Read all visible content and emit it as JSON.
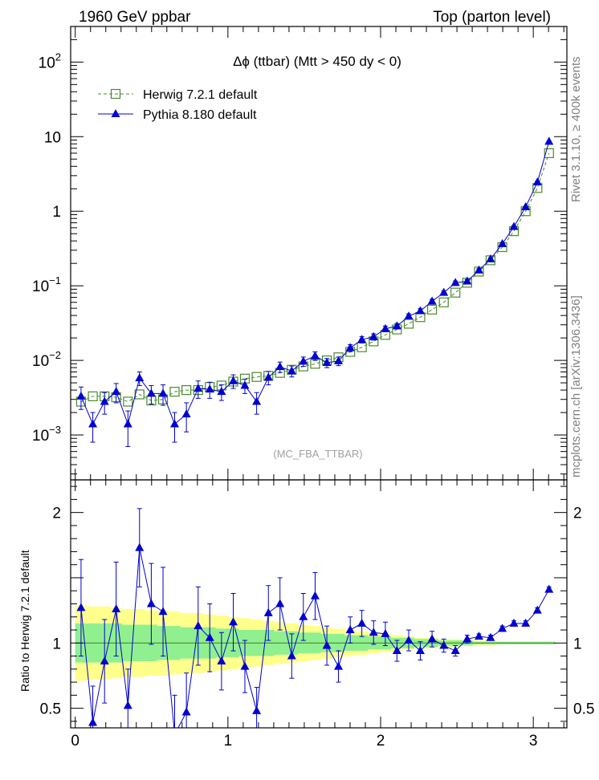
{
  "header": {
    "left": "1960 GeV ppbar",
    "right": "Top (parton level)"
  },
  "side_labels": {
    "rivet": "Rivet 3.1.10, ≥ 400k events",
    "mcplots": "mcplots.cern.ch [arXiv:1306.3436]"
  },
  "chart_data": {
    "type": "line",
    "title": "Δϕ (ttbar) (Mtt > 450 dy < 0)",
    "watermark": "(MC_FBA_TTBAR)",
    "xlabel": "",
    "ylabel": "",
    "xlim": [
      -0.03,
      3.22
    ],
    "main_panel": {
      "yscale": "log",
      "ylim": [
        0.00025,
        300
      ],
      "yticks": [
        {
          "v": 0.001,
          "base": "10",
          "exp": "−3"
        },
        {
          "v": 0.01,
          "base": "10",
          "exp": "−2"
        },
        {
          "v": 0.1,
          "base": "10",
          "exp": "−1"
        },
        {
          "v": 1,
          "base": "1",
          "exp": ""
        },
        {
          "v": 10,
          "base": "10",
          "exp": ""
        },
        {
          "v": 100,
          "base": "10",
          "exp": "2"
        }
      ]
    },
    "ratio_panel": {
      "ylabel": "Ratio to Herwig 7.2.1 default",
      "ylim": [
        0.35,
        2.25
      ],
      "yticks": [
        {
          "v": 0.5,
          "label": "0.5"
        },
        {
          "v": 1,
          "label": "1"
        },
        {
          "v": 2,
          "label": "2"
        }
      ],
      "band_inner": [
        0.15,
        0.15,
        0.15,
        0.15,
        0.14,
        0.14,
        0.14,
        0.13,
        0.13,
        0.12,
        0.12,
        0.12,
        0.11,
        0.11,
        0.1,
        0.1,
        0.1,
        0.09,
        0.09,
        0.08,
        0.08,
        0.07,
        0.07,
        0.06,
        0.06,
        0.05,
        0.05,
        0.04,
        0.04,
        0.03,
        0.03,
        0.02,
        0.02,
        0.02,
        0.01,
        0.01,
        0.01,
        0.01,
        0.01,
        0.01,
        0.01
      ],
      "band_outer": [
        0.29,
        0.28,
        0.28,
        0.27,
        0.26,
        0.26,
        0.25,
        0.25,
        0.24,
        0.23,
        0.23,
        0.22,
        0.21,
        0.2,
        0.19,
        0.18,
        0.17,
        0.16,
        0.15,
        0.14,
        0.13,
        0.12,
        0.11,
        0.1,
        0.09,
        0.08,
        0.07,
        0.06,
        0.05,
        0.04,
        0.04,
        0.03,
        0.03,
        0.02,
        0.02,
        0.02,
        0.01,
        0.01,
        0.01,
        0.01,
        0.01
      ]
    },
    "x": [
      0.038,
      0.115,
      0.192,
      0.268,
      0.345,
      0.421,
      0.498,
      0.575,
      0.651,
      0.728,
      0.805,
      0.881,
      0.958,
      1.035,
      1.111,
      1.188,
      1.265,
      1.341,
      1.418,
      1.494,
      1.571,
      1.648,
      1.724,
      1.801,
      1.877,
      1.954,
      2.031,
      2.107,
      2.184,
      2.26,
      2.337,
      2.414,
      2.49,
      2.567,
      2.644,
      2.72,
      2.797,
      2.873,
      2.95,
      3.027,
      3.103
    ],
    "series": [
      {
        "name": "Herwig 7.2.1 default",
        "color": "#4a8a2a",
        "marker": "open-square",
        "linestyle": "dashed",
        "values": [
          0.0028,
          0.0033,
          0.0033,
          0.0032,
          0.0028,
          0.0035,
          0.0029,
          0.003,
          0.0038,
          0.004,
          0.004,
          0.0044,
          0.0046,
          0.0052,
          0.0057,
          0.006,
          0.0062,
          0.0068,
          0.0075,
          0.0083,
          0.009,
          0.01,
          0.011,
          0.013,
          0.015,
          0.018,
          0.022,
          0.026,
          0.031,
          0.038,
          0.048,
          0.06,
          0.081,
          0.11,
          0.155,
          0.22,
          0.33,
          0.54,
          1.0,
          2.05,
          6.0
        ]
      },
      {
        "name": "Pythia 8.180 default",
        "color": "#0000d0",
        "marker": "filled-triangle",
        "linestyle": "solid",
        "values": [
          0.0033,
          0.0014,
          0.0028,
          0.0038,
          0.0014,
          0.0058,
          0.0036,
          0.0036,
          0.0014,
          0.0019,
          0.0042,
          0.0041,
          0.0038,
          0.0053,
          0.0046,
          0.0028,
          0.0059,
          0.0082,
          0.0072,
          0.0097,
          0.0115,
          0.0093,
          0.0098,
          0.0147,
          0.019,
          0.0207,
          0.0265,
          0.0288,
          0.039,
          0.046,
          0.062,
          0.081,
          0.11,
          0.115,
          0.162,
          0.228,
          0.365,
          0.62,
          1.14,
          2.45,
          8.6
        ],
        "err": [
          0.0011,
          0.0006,
          0.0009,
          0.0011,
          0.0007,
          0.0012,
          0.001,
          0.0011,
          0.0006,
          0.0008,
          0.0011,
          0.001,
          0.0009,
          0.0011,
          0.001,
          0.0009,
          0.0012,
          0.0013,
          0.0012,
          0.0014,
          0.0015,
          0.0013,
          0.0013,
          0.0016,
          0.0019,
          0.002,
          0.0023,
          0.0024,
          0.003,
          0.0033,
          0.004,
          0.0048,
          0.006,
          0.0061,
          0.0075,
          0.009,
          0.012,
          0.018,
          0.028,
          0.05,
          0.12
        ],
        "ratio": [
          1.27,
          0.39,
          0.86,
          1.26,
          0.52,
          1.73,
          1.3,
          1.24,
          0.3,
          0.47,
          1.13,
          1.04,
          0.86,
          1.16,
          0.82,
          0.48,
          1.23,
          1.3,
          0.9,
          1.2,
          1.36,
          0.98,
          0.82,
          1.1,
          1.15,
          1.08,
          1.07,
          0.94,
          1.02,
          0.94,
          1.03,
          0.98,
          0.94,
          1.03,
          1.05,
          1.04,
          1.11,
          1.15,
          1.15,
          1.25,
          1.41
        ],
        "ratio_err": [
          0.37,
          0.28,
          0.32,
          0.36,
          0.28,
          0.3,
          0.31,
          0.34,
          0.3,
          0.3,
          0.3,
          0.26,
          0.22,
          0.22,
          0.2,
          0.18,
          0.21,
          0.2,
          0.17,
          0.18,
          0.18,
          0.15,
          0.12,
          0.1,
          0.1,
          0.09,
          0.09,
          0.08,
          0.08,
          0.07,
          0.06,
          0.05,
          0.04,
          0.03,
          0.02,
          0.02,
          0.02,
          0.02,
          0.02,
          0.02,
          0.02
        ]
      }
    ]
  }
}
